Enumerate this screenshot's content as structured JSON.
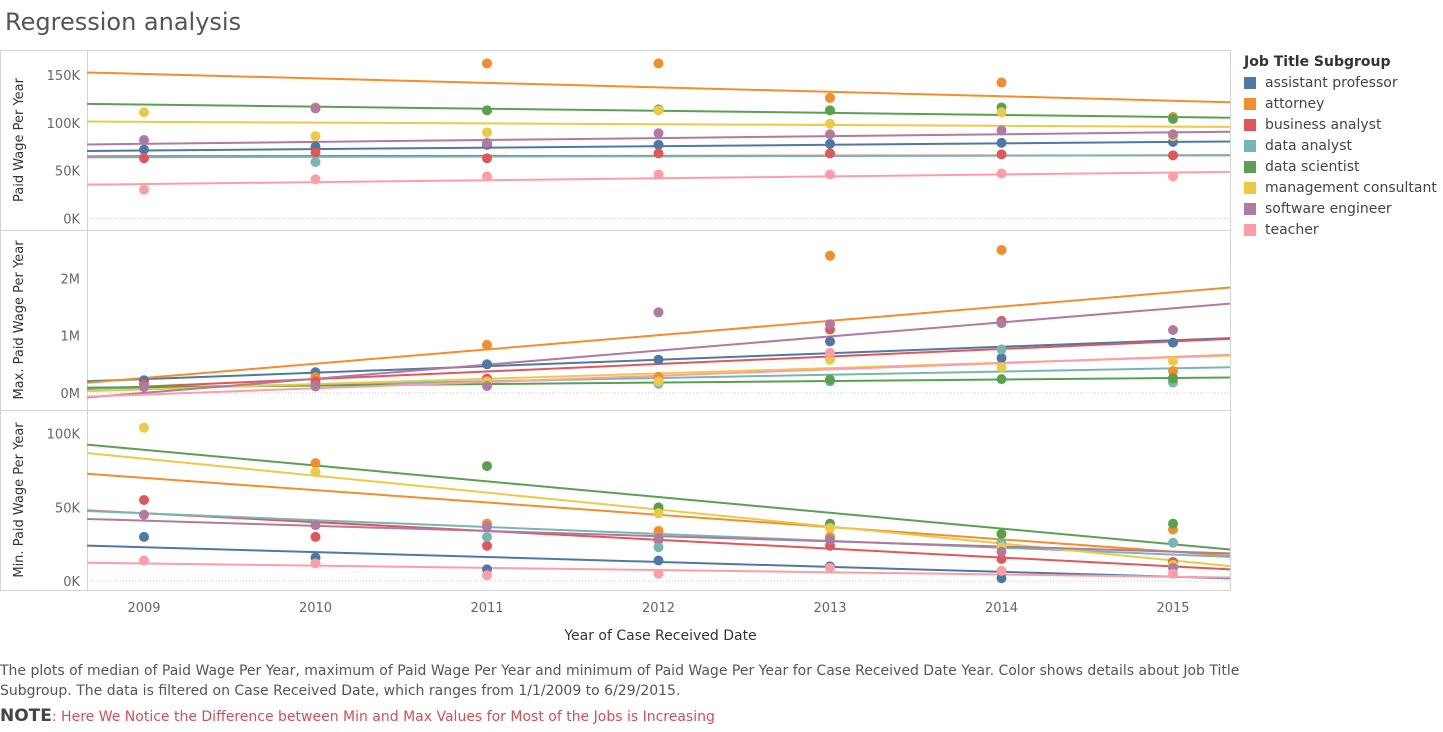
{
  "title": "Regression analysis",
  "colors": {
    "assistant professor": "#4e79a7",
    "attorney": "#f28e2b",
    "business analyst": "#e15759",
    "data analyst": "#76b7b2",
    "data scientist": "#59a14f",
    "management consultant": "#edc948",
    "software engineer": "#b07aa1",
    "teacher": "#ff9da7"
  },
  "legend": {
    "title": "Job Title Subgroup",
    "items": [
      "assistant professor",
      "attorney",
      "business analyst",
      "data analyst",
      "data scientist",
      "management consultant",
      "software engineer",
      "teacher"
    ]
  },
  "caption": "The plots of median of Paid Wage Per Year, maximum of Paid Wage Per Year and minimum of Paid Wage Per Year for Case Received Date Year.  Color shows details about Job Title Subgroup. The data is filtered on Case Received Date, which ranges from 1/1/2009 to 6/29/2015.",
  "note": {
    "label": "NOTE",
    "text": ": Here We Notice the Difference between Min and Max Values for Most of the Jobs is Increasing"
  },
  "chart_data": {
    "type": "scatter",
    "xlabel": "Year of Case Received Date",
    "x": [
      2009,
      2010,
      2011,
      2012,
      2013,
      2014,
      2015
    ],
    "panels": [
      {
        "ylabel": "Paid Wage Per Year",
        "ylim": [
          -12000,
          176000
        ],
        "yticks": [
          0,
          50000,
          100000,
          150000
        ],
        "yticklabels": [
          "0K",
          "50K",
          "100K",
          "150K"
        ],
        "series": [
          {
            "name": "assistant professor",
            "values": [
              72000,
              75000,
              77000,
              77000,
              78000,
              79000,
              80000
            ],
            "trend": [
              71000,
              80000
            ]
          },
          {
            "name": "attorney",
            "values": [
              null,
              116000,
              162000,
              162000,
              126000,
              142000,
              106000
            ],
            "trend": [
              151000,
              123000
            ]
          },
          {
            "name": "business analyst",
            "values": [
              63000,
              69000,
              63000,
              68000,
              68000,
              67000,
              66000
            ],
            "trend": [
              65000,
              66000
            ]
          },
          {
            "name": "data analyst",
            "values": [
              null,
              59000,
              null,
              null,
              null,
              null,
              null
            ],
            "trend": [
              64000,
              66000
            ]
          },
          {
            "name": "data scientist",
            "values": [
              null,
              null,
              113000,
              114000,
              113000,
              116000,
              104000
            ],
            "trend": [
              119000,
              106000
            ]
          },
          {
            "name": "management consultant",
            "values": [
              111000,
              86000,
              90000,
              113000,
              99000,
              111000,
              86000
            ],
            "trend": [
              101000,
              96000
            ]
          },
          {
            "name": "software engineer",
            "values": [
              82000,
              115000,
              79000,
              89000,
              88000,
              92000,
              88000
            ],
            "trend": [
              78000,
              90000
            ]
          },
          {
            "name": "teacher",
            "values": [
              30000,
              41000,
              44000,
              46000,
              46000,
              47000,
              44000
            ],
            "trend": [
              36000,
              48000
            ]
          }
        ]
      },
      {
        "ylabel": "Max. Paid Wage Per Year",
        "ylim": [
          -300000,
          2850000
        ],
        "yticks": [
          0,
          1000000,
          2000000
        ],
        "yticklabels": [
          "0M",
          "1M",
          "2M"
        ],
        "series": [
          {
            "name": "assistant professor",
            "values": [
              220000,
              360000,
              500000,
              580000,
              900000,
              610000,
              880000
            ],
            "trend": [
              240000,
              920000
            ]
          },
          {
            "name": "attorney",
            "values": [
              null,
              270000,
              840000,
              280000,
              2400000,
              2500000,
              380000
            ],
            "trend": [
              260000,
              1760000
            ]
          },
          {
            "name": "business analyst",
            "values": [
              150000,
              200000,
              250000,
              200000,
              1110000,
              1260000,
              260000
            ],
            "trend": [
              110000,
              900000
            ]
          },
          {
            "name": "data analyst",
            "values": [
              100000,
              110000,
              170000,
              160000,
              200000,
              760000,
              180000
            ],
            "trend": [
              90000,
              430000
            ]
          },
          {
            "name": "data scientist",
            "values": [
              null,
              null,
              null,
              null,
              230000,
              240000,
              250000
            ],
            "trend": [
              100000,
              260000
            ]
          },
          {
            "name": "management consultant",
            "values": [
              null,
              null,
              200000,
              200000,
              580000,
              450000,
              560000
            ],
            "trend": [
              60000,
              620000
            ]
          },
          {
            "name": "software engineer",
            "values": [
              100000,
              120000,
              120000,
              1410000,
              1200000,
              1220000,
              1100000
            ],
            "trend": [
              0,
              1480000
            ]
          },
          {
            "name": "teacher",
            "values": [
              null,
              null,
              null,
              null,
              700000,
              null,
              null
            ],
            "trend": [
              -30000,
              630000
            ]
          }
        ]
      },
      {
        "ylabel": "Min. Paid Wage Per Year",
        "ylim": [
          -6000,
          116000
        ],
        "yticks": [
          0,
          50000,
          100000
        ],
        "yticklabels": [
          "0K",
          "50K",
          "100K"
        ],
        "series": [
          {
            "name": "assistant professor",
            "values": [
              30000,
              16000,
              8000,
              14000,
              10000,
              2000,
              11000
            ],
            "trend": [
              23000,
              3000
            ]
          },
          {
            "name": "attorney",
            "values": [
              null,
              80000,
              39000,
              34000,
              30000,
              32000,
              35000
            ],
            "trend": [
              70000,
              20000
            ]
          },
          {
            "name": "business analyst",
            "values": [
              55000,
              30000,
              24000,
              28000,
              24000,
              15000,
              13000
            ],
            "trend": [
              46000,
              10000
            ]
          },
          {
            "name": "data analyst",
            "values": [
              null,
              null,
              30000,
              23000,
              28000,
              26000,
              26000
            ],
            "trend": [
              46000,
              18000
            ]
          },
          {
            "name": "data scientist",
            "values": [
              null,
              null,
              78000,
              50000,
              39000,
              32000,
              39000
            ],
            "trend": [
              89000,
              25000
            ]
          },
          {
            "name": "management consultant",
            "values": [
              104000,
              74000,
              null,
              46000,
              36000,
              23000,
              11000
            ],
            "trend": [
              83000,
              14000
            ]
          },
          {
            "name": "software engineer",
            "values": [
              45000,
              38000,
              37000,
              29000,
              28000,
              20000,
              9000
            ],
            "trend": [
              41000,
              20000
            ]
          },
          {
            "name": "teacher",
            "values": [
              14000,
              12000,
              4000,
              5000,
              9000,
              7000,
              5000
            ],
            "trend": [
              12000,
              3000
            ]
          }
        ]
      }
    ]
  }
}
